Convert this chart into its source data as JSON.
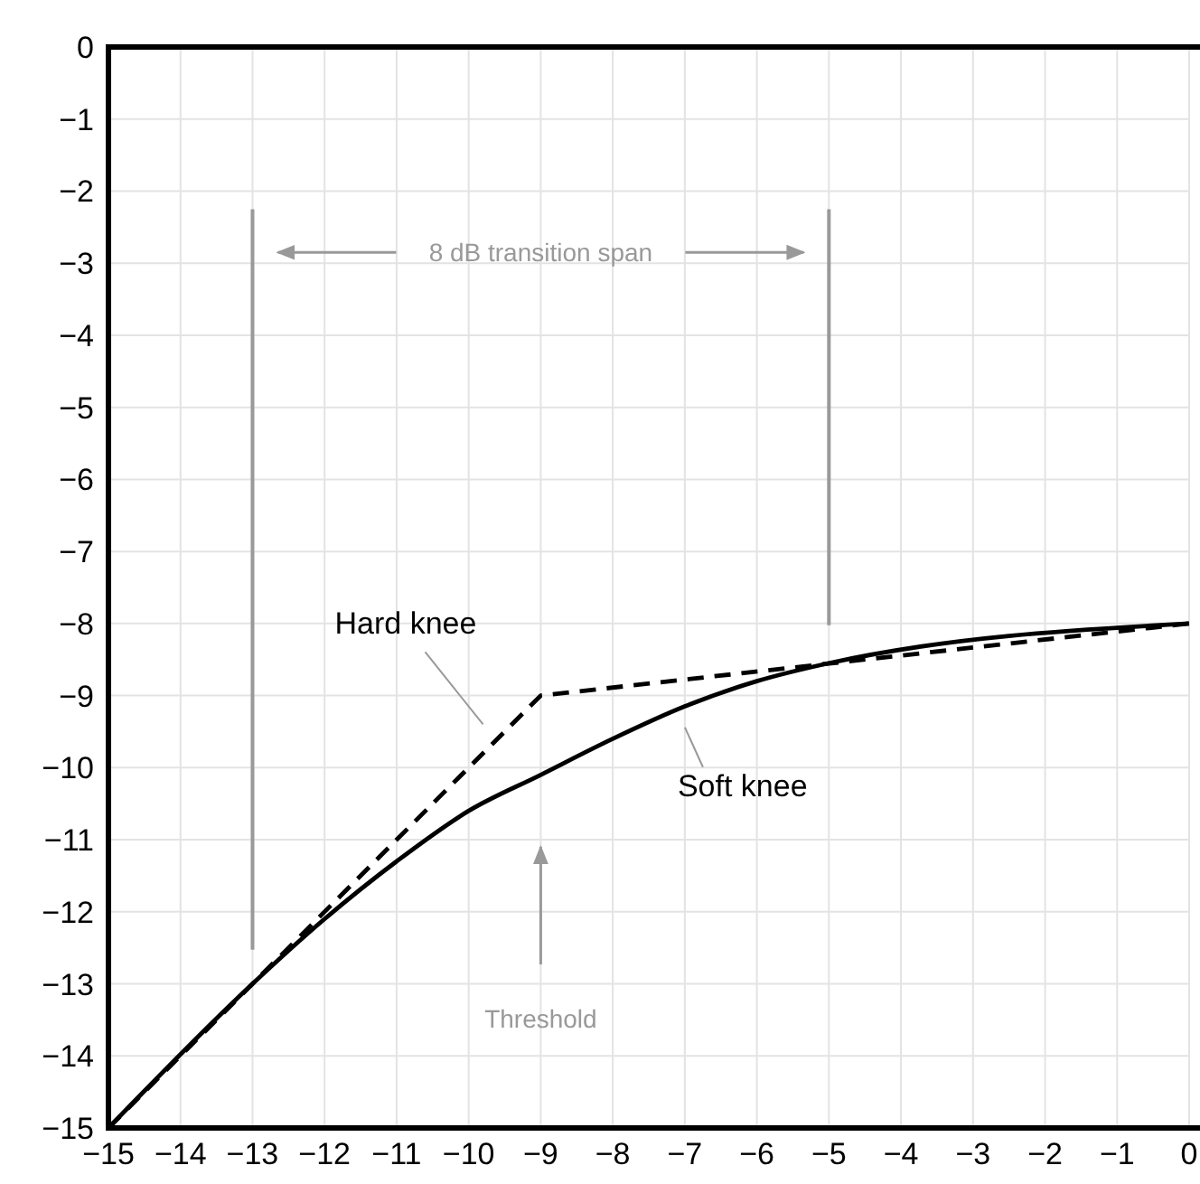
{
  "chart_data": {
    "type": "line",
    "xlim": [
      -15,
      0
    ],
    "ylim": [
      -15,
      0
    ],
    "xticks": [
      -15,
      -14,
      -13,
      -12,
      -11,
      -10,
      -9,
      -8,
      -7,
      -6,
      -5,
      -4,
      -3,
      -2,
      -1,
      0
    ],
    "yticks": [
      -15,
      -14,
      -13,
      -12,
      -11,
      -10,
      -9,
      -8,
      -7,
      -6,
      -5,
      -4,
      -3,
      -2,
      -1,
      0
    ],
    "grid": true,
    "series": [
      {
        "name": "Hard knee",
        "color": "#000000",
        "line_style": "dashed",
        "x": [
          -15,
          -9,
          0
        ],
        "values": [
          -15,
          -9,
          -8
        ]
      },
      {
        "name": "Soft knee",
        "color": "#000000",
        "line_style": "solid",
        "x": [
          -15,
          -13,
          -12,
          -11,
          -10,
          -9,
          -8,
          -7,
          -6,
          -5,
          0
        ],
        "values": [
          -15,
          -13,
          -12.1,
          -11.3,
          -10.6,
          -10.1,
          -9.6,
          -9.15,
          -8.8,
          -8.55,
          -8
        ]
      }
    ],
    "ref_lines": [
      {
        "axis": "x",
        "value": -13,
        "color": "#999999"
      },
      {
        "axis": "x",
        "value": -5,
        "color": "#999999"
      }
    ],
    "annotations": [
      "8 dB transition span",
      "Threshold"
    ]
  }
}
